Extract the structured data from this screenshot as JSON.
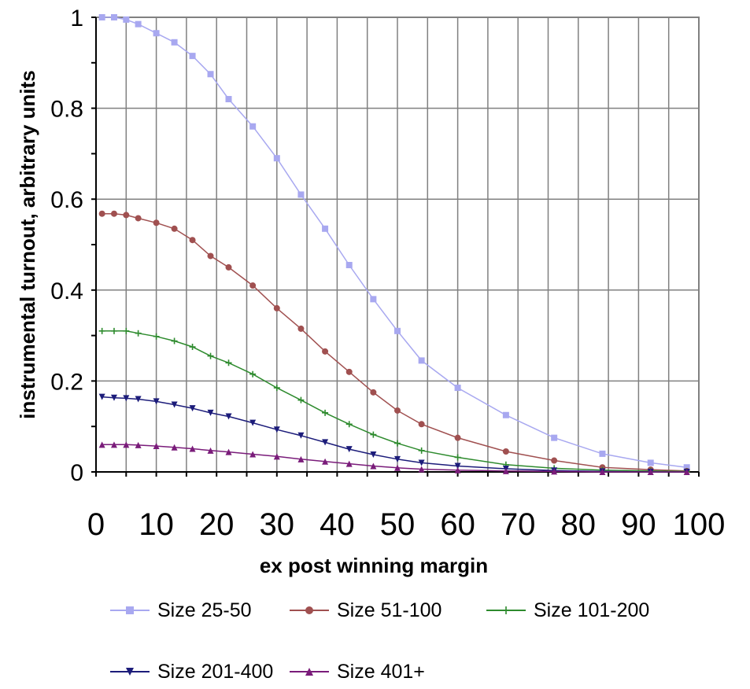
{
  "chart_data": {
    "type": "line",
    "title": "",
    "xlabel": "ex post winning margin",
    "ylabel": "instrumental turnout, arbitrary units",
    "xlim": [
      0,
      100
    ],
    "ylim": [
      0,
      1
    ],
    "xticks": [
      0,
      10,
      20,
      30,
      40,
      50,
      60,
      70,
      80,
      90,
      100
    ],
    "xtick_labels": [
      "0",
      "10",
      "20",
      "30",
      "40",
      "50",
      "60",
      "70",
      "80",
      "90",
      "100"
    ],
    "yticks": [
      0,
      0.2,
      0.4,
      0.6,
      0.8,
      1
    ],
    "ytick_labels": [
      "0",
      "0.2",
      "0.4",
      "0.6",
      "0.8",
      "1"
    ],
    "grid": true,
    "legend_position": "bottom",
    "series": [
      {
        "name": "Size 25-50",
        "color": "#a8a8f0",
        "marker": "square",
        "x": [
          1,
          3,
          5,
          7,
          10,
          13,
          16,
          19,
          22,
          26,
          30,
          34,
          38,
          42,
          46,
          50,
          54,
          60,
          68,
          76,
          84,
          92,
          98
        ],
        "y": [
          1.0,
          1.0,
          0.995,
          0.985,
          0.965,
          0.945,
          0.915,
          0.875,
          0.82,
          0.76,
          0.69,
          0.61,
          0.535,
          0.455,
          0.38,
          0.31,
          0.245,
          0.185,
          0.125,
          0.075,
          0.04,
          0.02,
          0.01
        ]
      },
      {
        "name": "Size 51-100",
        "color": "#a05050",
        "marker": "circle",
        "x": [
          1,
          3,
          5,
          7,
          10,
          13,
          16,
          19,
          22,
          26,
          30,
          34,
          38,
          42,
          46,
          50,
          54,
          60,
          68,
          76,
          84,
          92,
          98
        ],
        "y": [
          0.568,
          0.568,
          0.565,
          0.558,
          0.548,
          0.535,
          0.51,
          0.475,
          0.45,
          0.41,
          0.36,
          0.315,
          0.265,
          0.22,
          0.175,
          0.135,
          0.105,
          0.075,
          0.045,
          0.025,
          0.01,
          0.005,
          0.002
        ]
      },
      {
        "name": "Size 101-200",
        "color": "#2e8b2e",
        "marker": "plus",
        "x": [
          1,
          3,
          5,
          7,
          10,
          13,
          16,
          19,
          22,
          26,
          30,
          34,
          38,
          42,
          46,
          50,
          54,
          60,
          68,
          76,
          84,
          92,
          98
        ],
        "y": [
          0.31,
          0.31,
          0.31,
          0.305,
          0.298,
          0.288,
          0.275,
          0.255,
          0.24,
          0.215,
          0.185,
          0.158,
          0.13,
          0.105,
          0.082,
          0.063,
          0.047,
          0.032,
          0.016,
          0.008,
          0.004,
          0.002,
          0.001
        ]
      },
      {
        "name": "Size 201-400",
        "color": "#1c1c7a",
        "marker": "triangle-down",
        "x": [
          1,
          3,
          5,
          7,
          10,
          13,
          16,
          19,
          22,
          26,
          30,
          34,
          38,
          42,
          46,
          50,
          54,
          60,
          68,
          76,
          84,
          92,
          98
        ],
        "y": [
          0.165,
          0.163,
          0.162,
          0.16,
          0.155,
          0.148,
          0.14,
          0.13,
          0.122,
          0.108,
          0.093,
          0.08,
          0.065,
          0.05,
          0.038,
          0.028,
          0.02,
          0.013,
          0.007,
          0.003,
          0.001,
          0.0,
          0.0
        ]
      },
      {
        "name": "Size 401+",
        "color": "#7a1c7a",
        "marker": "triangle-up",
        "x": [
          1,
          3,
          5,
          7,
          10,
          13,
          16,
          19,
          22,
          26,
          30,
          34,
          38,
          42,
          46,
          50,
          54,
          60,
          68,
          76,
          84,
          92,
          98
        ],
        "y": [
          0.06,
          0.06,
          0.06,
          0.059,
          0.057,
          0.054,
          0.051,
          0.047,
          0.044,
          0.039,
          0.034,
          0.028,
          0.023,
          0.018,
          0.013,
          0.009,
          0.006,
          0.004,
          0.002,
          0.001,
          0.0,
          0.0,
          0.0
        ]
      }
    ]
  }
}
